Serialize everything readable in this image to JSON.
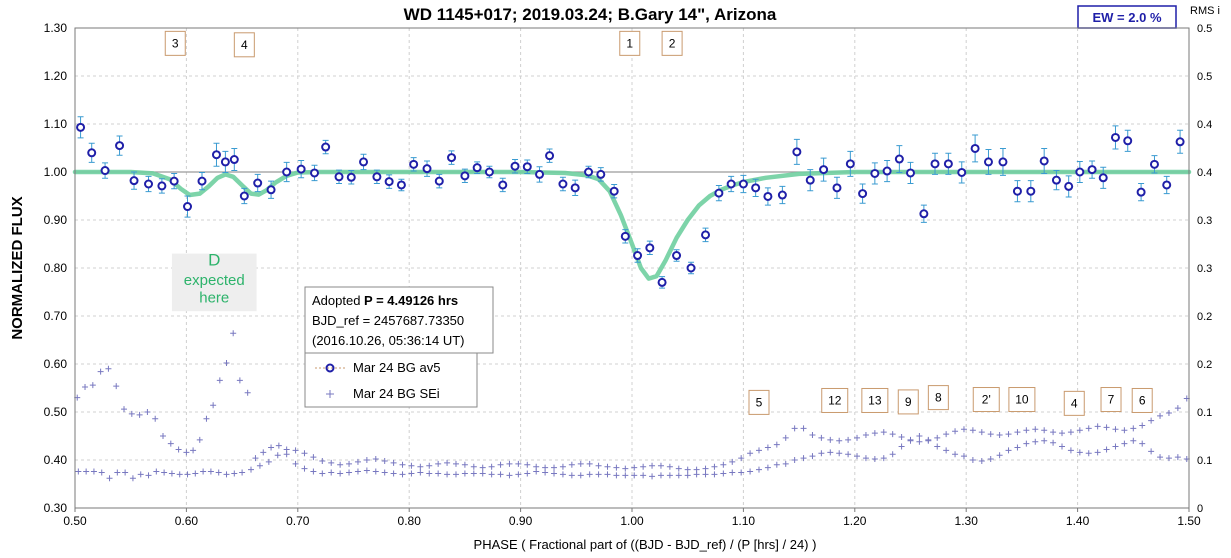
{
  "chart_data": {
    "type": "scatter",
    "title": "WD 1145+017; 2019.03.24; B.Gary 14\",  Arizona",
    "xlabel": "PHASE ( Fractional part of ((BJD - BJD_ref) / (P [hrs] / 24) )",
    "ylabel": "NORMALIZED FLUX",
    "y2label": "RMS i",
    "xlim": [
      0.5,
      1.5
    ],
    "ylim": [
      0.3,
      1.3
    ],
    "y2lim": [
      0.0,
      0.5
    ],
    "x_ticks": [
      "0.50",
      "0.60",
      "0.70",
      "0.80",
      "0.90",
      "1.00",
      "1.10",
      "1.20",
      "1.30",
      "1.40",
      "1.50"
    ],
    "y_ticks": [
      "0.30",
      "0.40",
      "0.50",
      "0.60",
      "0.70",
      "0.80",
      "0.90",
      "1.00",
      "1.10",
      "1.20",
      "1.30"
    ],
    "y2_ticks": [
      "0",
      "0.1",
      "0.1",
      "0.2",
      "0.2",
      "0.3",
      "0.3",
      "0.4",
      "0.4",
      "0.5",
      "0.5"
    ],
    "grid": true,
    "ew_label": "EW =  2.0 %",
    "colors": {
      "av5": "#1f1fa8",
      "errorbar": "#3a9bd1",
      "sei": "#7878c0",
      "model": "#6fcfa0",
      "ref_line": "#9a9a9a"
    },
    "info_box": {
      "line1_prefix": "Adopted ",
      "line1_bold": "P = 4.49126 hrs",
      "line2": "BJD_ref = 2457687.73350",
      "line3": "(2016.10.26, 05:36:14 UT)"
    },
    "legend": [
      "Mar 24 BG av5",
      "Mar 24 BG SEi"
    ],
    "annotation": [
      "D",
      "expected",
      "here"
    ],
    "dip_labels": [
      {
        "text": "3",
        "x": 0.59,
        "y": 1.268
      },
      {
        "text": "4",
        "x": 0.652,
        "y": 1.265
      },
      {
        "text": "1",
        "x": 0.998,
        "y": 1.268
      },
      {
        "text": "2",
        "x": 1.036,
        "y": 1.268
      },
      {
        "text": "5",
        "x": 1.114,
        "y": 0.52
      },
      {
        "text": "12",
        "x": 1.182,
        "y": 0.524
      },
      {
        "text": "13",
        "x": 1.218,
        "y": 0.524
      },
      {
        "text": "9",
        "x": 1.248,
        "y": 0.521
      },
      {
        "text": "8",
        "x": 1.275,
        "y": 0.53
      },
      {
        "text": "2'",
        "x": 1.318,
        "y": 0.526
      },
      {
        "text": "10",
        "x": 1.35,
        "y": 0.526
      },
      {
        "text": "4",
        "x": 1.397,
        "y": 0.518
      },
      {
        "text": "7",
        "x": 1.43,
        "y": 0.526
      },
      {
        "text": "6",
        "x": 1.458,
        "y": 0.524
      }
    ],
    "series": [
      {
        "name": "Mar 24 BG av5",
        "x": [
          0.505,
          0.515,
          0.527,
          0.54,
          0.553,
          0.566,
          0.578,
          0.589,
          0.601,
          0.614,
          0.627,
          0.635,
          0.643,
          0.652,
          0.664,
          0.676,
          0.69,
          0.703,
          0.715,
          0.725,
          0.737,
          0.748,
          0.759,
          0.771,
          0.782,
          0.793,
          0.804,
          0.816,
          0.827,
          0.838,
          0.85,
          0.861,
          0.872,
          0.884,
          0.895,
          0.906,
          0.917,
          0.926,
          0.938,
          0.949,
          0.961,
          0.972,
          0.984,
          0.994,
          1.005,
          1.016,
          1.027,
          1.04,
          1.053,
          1.066,
          1.078,
          1.089,
          1.1,
          1.111,
          1.122,
          1.135,
          1.148,
          1.16,
          1.172,
          1.184,
          1.196,
          1.207,
          1.218,
          1.229,
          1.24,
          1.25,
          1.262,
          1.272,
          1.284,
          1.296,
          1.308,
          1.32,
          1.333,
          1.346,
          1.358,
          1.37,
          1.381,
          1.392,
          1.402,
          1.413,
          1.423,
          1.434,
          1.445,
          1.457,
          1.469,
          1.48,
          1.492
        ],
        "y": [
          1.093,
          1.04,
          1.003,
          1.055,
          0.982,
          0.975,
          0.971,
          0.981,
          0.928,
          0.981,
          1.036,
          1.021,
          1.026,
          0.95,
          0.977,
          0.963,
          1.0,
          1.006,
          0.998,
          1.052,
          0.99,
          0.989,
          1.021,
          0.99,
          0.98,
          0.973,
          1.016,
          1.007,
          0.981,
          1.03,
          0.992,
          1.009,
          1.0,
          0.973,
          1.012,
          1.011,
          0.995,
          1.034,
          0.975,
          0.967,
          1.0,
          0.995,
          0.96,
          0.866,
          0.826,
          0.842,
          0.77,
          0.826,
          0.8,
          0.869,
          0.956,
          0.975,
          0.975,
          0.967,
          0.949,
          0.952,
          1.042,
          0.983,
          1.005,
          0.967,
          1.017,
          0.955,
          0.997,
          1.002,
          1.027,
          0.998,
          0.913,
          1.017,
          1.017,
          0.999,
          1.049,
          1.021,
          1.021,
          0.96,
          0.96,
          1.023,
          0.983,
          0.97,
          1.0,
          1.005,
          0.988,
          1.072,
          1.065,
          0.958,
          1.016,
          0.973,
          1.063
        ],
        "err": [
          0.022,
          0.02,
          0.016,
          0.02,
          0.018,
          0.016,
          0.015,
          0.016,
          0.022,
          0.018,
          0.024,
          0.022,
          0.023,
          0.016,
          0.018,
          0.018,
          0.02,
          0.018,
          0.016,
          0.014,
          0.014,
          0.014,
          0.016,
          0.014,
          0.014,
          0.012,
          0.014,
          0.016,
          0.014,
          0.014,
          0.014,
          0.012,
          0.012,
          0.014,
          0.014,
          0.014,
          0.016,
          0.014,
          0.014,
          0.016,
          0.012,
          0.014,
          0.014,
          0.014,
          0.014,
          0.014,
          0.012,
          0.012,
          0.012,
          0.014,
          0.016,
          0.016,
          0.018,
          0.018,
          0.018,
          0.018,
          0.026,
          0.022,
          0.024,
          0.022,
          0.026,
          0.02,
          0.022,
          0.022,
          0.028,
          0.022,
          0.018,
          0.022,
          0.022,
          0.022,
          0.028,
          0.026,
          0.028,
          0.022,
          0.022,
          0.026,
          0.02,
          0.022,
          0.022,
          0.018,
          0.022,
          0.024,
          0.022,
          0.018,
          0.018,
          0.018,
          0.024
        ]
      },
      {
        "name": "Mar 24 BG SEi",
        "x": [
          0.502,
          0.509,
          0.516,
          0.523,
          0.53,
          0.537,
          0.544,
          0.551,
          0.558,
          0.565,
          0.572,
          0.579,
          0.586,
          0.593,
          0.6,
          0.606,
          0.612,
          0.618,
          0.624,
          0.63,
          0.636,
          0.642,
          0.648,
          0.655,
          0.662,
          0.669,
          0.676,
          0.683,
          0.69,
          0.698,
          0.706,
          0.714,
          0.722,
          0.73,
          0.738,
          0.746,
          0.754,
          0.762,
          0.77,
          0.778,
          0.786,
          0.794,
          0.802,
          0.81,
          0.818,
          0.826,
          0.834,
          0.842,
          0.85,
          0.858,
          0.866,
          0.874,
          0.882,
          0.89,
          0.898,
          0.906,
          0.914,
          0.922,
          0.93,
          0.938,
          0.946,
          0.954,
          0.962,
          0.97,
          0.978,
          0.986,
          0.994,
          1.002,
          1.01,
          1.018,
          1.026,
          1.034,
          1.042,
          1.05,
          1.058,
          1.066,
          1.074,
          1.082,
          1.09,
          1.098,
          1.106,
          1.114,
          1.122,
          1.13,
          1.138,
          1.146,
          1.154,
          1.162,
          1.17,
          1.178,
          1.186,
          1.194,
          1.202,
          1.21,
          1.218,
          1.226,
          1.234,
          1.242,
          1.25,
          1.258,
          1.266,
          1.274,
          1.282,
          1.29,
          1.298,
          1.306,
          1.314,
          1.322,
          1.33,
          1.338,
          1.346,
          1.354,
          1.362,
          1.37,
          1.378,
          1.386,
          1.394,
          1.402,
          1.41,
          1.418,
          1.426,
          1.434,
          1.442,
          1.45,
          1.458,
          1.466,
          1.474,
          1.482,
          1.49,
          1.498,
          0.503,
          0.51,
          0.517,
          0.524,
          0.531,
          0.538,
          0.545,
          0.552,
          0.559,
          0.566,
          0.573,
          0.58,
          0.587,
          0.594,
          0.601,
          0.608,
          0.615,
          0.622,
          0.629,
          0.636,
          0.643,
          0.65,
          0.658,
          0.666,
          0.674,
          0.682,
          0.69,
          0.698,
          0.706,
          0.714,
          0.722,
          0.73,
          0.738,
          0.746,
          0.754,
          0.762,
          0.77,
          0.778,
          0.786,
          0.794,
          0.802,
          0.81,
          0.818,
          0.826,
          0.834,
          0.842,
          0.85,
          0.858,
          0.866,
          0.874,
          0.882,
          0.89,
          0.898,
          0.906,
          0.914,
          0.922,
          0.93,
          0.938,
          0.946,
          0.954,
          0.962,
          0.97,
          0.978,
          0.986,
          0.994,
          1.002,
          1.01,
          1.018,
          1.026,
          1.034,
          1.042,
          1.05,
          1.058,
          1.066,
          1.074,
          1.082,
          1.09,
          1.098,
          1.106,
          1.114,
          1.122,
          1.13,
          1.138,
          1.146,
          1.154,
          1.162,
          1.17,
          1.178,
          1.186,
          1.194,
          1.202,
          1.21,
          1.218,
          1.226,
          1.234,
          1.242,
          1.25,
          1.258,
          1.266,
          1.274,
          1.282,
          1.29,
          1.298,
          1.306,
          1.314,
          1.322,
          1.33,
          1.338,
          1.346,
          1.354,
          1.362,
          1.37,
          1.378,
          1.386,
          1.394,
          1.402,
          1.41,
          1.418,
          1.426,
          1.434,
          1.442,
          1.45,
          1.458,
          1.466,
          1.474,
          1.482,
          1.49,
          1.498
        ],
        "y2": [
          0.115,
          0.126,
          0.128,
          0.142,
          0.145,
          0.127,
          0.103,
          0.098,
          0.097,
          0.1,
          0.093,
          0.075,
          0.067,
          0.061,
          0.058,
          0.06,
          0.071,
          0.093,
          0.107,
          0.133,
          0.151,
          0.182,
          0.133,
          0.12,
          0.052,
          0.058,
          0.063,
          0.065,
          0.056,
          0.046,
          0.041,
          0.038,
          0.036,
          0.037,
          0.036,
          0.037,
          0.038,
          0.039,
          0.038,
          0.037,
          0.036,
          0.035,
          0.036,
          0.037,
          0.036,
          0.036,
          0.035,
          0.035,
          0.036,
          0.036,
          0.036,
          0.035,
          0.035,
          0.034,
          0.035,
          0.036,
          0.038,
          0.037,
          0.036,
          0.035,
          0.034,
          0.034,
          0.035,
          0.035,
          0.035,
          0.034,
          0.034,
          0.034,
          0.034,
          0.033,
          0.034,
          0.034,
          0.034,
          0.034,
          0.035,
          0.035,
          0.035,
          0.036,
          0.037,
          0.037,
          0.038,
          0.04,
          0.042,
          0.045,
          0.046,
          0.05,
          0.052,
          0.054,
          0.057,
          0.058,
          0.057,
          0.056,
          0.054,
          0.052,
          0.051,
          0.052,
          0.056,
          0.064,
          0.07,
          0.075,
          0.071,
          0.064,
          0.06,
          0.056,
          0.054,
          0.05,
          0.049,
          0.051,
          0.055,
          0.06,
          0.063,
          0.067,
          0.069,
          0.07,
          0.068,
          0.064,
          0.06,
          0.058,
          0.057,
          0.058,
          0.061,
          0.064,
          0.067,
          0.07,
          0.067,
          0.059,
          0.053,
          0.052,
          0.053,
          0.051,
          0.038,
          0.038,
          0.038,
          0.037,
          0.031,
          0.037,
          0.037,
          0.031,
          0.035,
          0.034,
          0.038,
          0.037,
          0.036,
          0.035,
          0.035,
          0.036,
          0.038,
          0.038,
          0.037,
          0.035,
          0.036,
          0.037,
          0.04,
          0.044,
          0.048,
          0.055,
          0.061,
          0.06,
          0.057,
          0.053,
          0.049,
          0.047,
          0.045,
          0.046,
          0.048,
          0.05,
          0.051,
          0.049,
          0.047,
          0.045,
          0.044,
          0.043,
          0.044,
          0.046,
          0.047,
          0.046,
          0.045,
          0.043,
          0.042,
          0.043,
          0.045,
          0.046,
          0.046,
          0.045,
          0.043,
          0.042,
          0.042,
          0.043,
          0.045,
          0.046,
          0.046,
          0.044,
          0.043,
          0.042,
          0.041,
          0.042,
          0.043,
          0.044,
          0.044,
          0.043,
          0.041,
          0.04,
          0.04,
          0.041,
          0.043,
          0.045,
          0.048,
          0.052,
          0.057,
          0.06,
          0.063,
          0.066,
          0.073,
          0.083,
          0.083,
          0.076,
          0.073,
          0.071,
          0.07,
          0.071,
          0.073,
          0.076,
          0.078,
          0.079,
          0.077,
          0.074,
          0.071,
          0.069,
          0.07,
          0.073,
          0.077,
          0.08,
          0.082,
          0.081,
          0.079,
          0.077,
          0.076,
          0.077,
          0.079,
          0.081,
          0.082,
          0.081,
          0.079,
          0.078,
          0.079,
          0.081,
          0.083,
          0.085,
          0.084,
          0.082,
          0.081,
          0.083,
          0.086,
          0.091,
          0.096,
          0.099,
          0.104,
          0.114,
          0.109
        ]
      },
      {
        "name": "model",
        "x": [
          0.5,
          0.55,
          0.57,
          0.585,
          0.595,
          0.603,
          0.612,
          0.62,
          0.628,
          0.635,
          0.642,
          0.65,
          0.658,
          0.665,
          0.672,
          0.68,
          0.69,
          0.7,
          0.72,
          0.76,
          0.8,
          0.85,
          0.9,
          0.94,
          0.96,
          0.97,
          0.98,
          0.99,
          1.0,
          1.008,
          1.015,
          1.022,
          1.03,
          1.04,
          1.05,
          1.06,
          1.07,
          1.08,
          1.09,
          1.1,
          1.12,
          1.15,
          1.2,
          1.3,
          1.4,
          1.5
        ],
        "y": [
          1.0,
          1.0,
          0.997,
          0.985,
          0.965,
          0.952,
          0.955,
          0.97,
          0.988,
          0.995,
          0.99,
          0.972,
          0.955,
          0.953,
          0.962,
          0.978,
          0.992,
          0.999,
          1.0,
          1.0,
          1.0,
          1.0,
          1.0,
          0.998,
          0.993,
          0.985,
          0.96,
          0.91,
          0.85,
          0.8,
          0.778,
          0.783,
          0.815,
          0.863,
          0.9,
          0.93,
          0.95,
          0.963,
          0.972,
          0.979,
          0.988,
          0.996,
          1.0,
          1.0,
          1.0,
          1.0
        ]
      }
    ]
  }
}
